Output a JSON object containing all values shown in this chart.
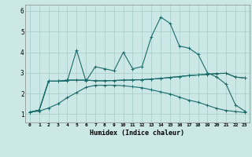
{
  "title": "",
  "xlabel": "Humidex (Indice chaleur)",
  "xlim": [
    -0.5,
    23.5
  ],
  "ylim": [
    0.6,
    6.3
  ],
  "background_color": "#cce8e6",
  "grid_color": "#aacfcd",
  "line_color": "#1a6b6b",
  "xticks": [
    0,
    1,
    2,
    3,
    4,
    5,
    6,
    7,
    8,
    9,
    10,
    11,
    12,
    13,
    14,
    15,
    16,
    17,
    18,
    19,
    20,
    21,
    22,
    23
  ],
  "yticks": [
    1,
    2,
    3,
    4,
    5,
    6
  ],
  "series": [
    [
      1.1,
      1.2,
      2.6,
      2.6,
      2.6,
      4.1,
      2.6,
      3.3,
      3.2,
      3.1,
      4.0,
      3.2,
      3.3,
      4.75,
      5.7,
      5.4,
      4.3,
      4.2,
      3.9,
      3.0,
      2.8,
      2.45,
      1.45,
      1.15
    ],
    [
      1.1,
      1.2,
      2.6,
      2.6,
      2.65,
      2.65,
      2.65,
      2.62,
      2.62,
      2.63,
      2.65,
      2.66,
      2.67,
      2.7,
      2.73,
      2.78,
      2.82,
      2.87,
      2.9,
      2.93,
      2.97,
      2.98,
      2.8,
      2.75
    ],
    [
      1.1,
      1.2,
      2.6,
      2.6,
      2.65,
      2.65,
      2.65,
      2.62,
      2.62,
      2.63,
      2.65,
      2.66,
      2.67,
      2.7,
      2.73,
      2.78,
      2.82,
      2.87,
      2.9,
      2.93,
      2.97,
      2.98,
      2.8,
      2.75
    ],
    [
      1.1,
      1.15,
      1.3,
      1.5,
      1.8,
      2.05,
      2.3,
      2.4,
      2.4,
      2.4,
      2.38,
      2.33,
      2.28,
      2.18,
      2.08,
      1.98,
      1.83,
      1.68,
      1.58,
      1.43,
      1.28,
      1.18,
      1.13,
      1.08
    ]
  ]
}
